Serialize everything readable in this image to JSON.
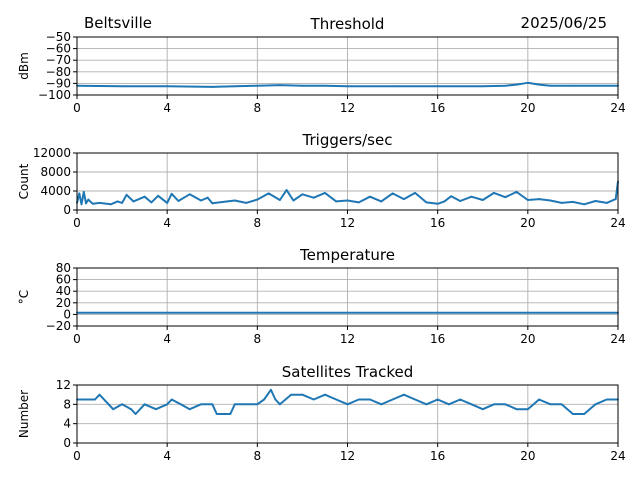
{
  "header": {
    "station": "Beltsville",
    "date": "2025/06/25"
  },
  "colors": {
    "series": "#1f77b4",
    "grid": "#b0b0b0",
    "axis": "#000000"
  },
  "chart_data": [
    {
      "type": "line",
      "title": "Threshold",
      "xlabel": "",
      "ylabel": "dBm",
      "xlim": [
        0,
        24
      ],
      "ylim": [
        -100,
        -50
      ],
      "xticks": [
        0,
        4,
        8,
        12,
        16,
        20,
        24
      ],
      "yticks": [
        -100,
        -90,
        -80,
        -70,
        -60,
        -50
      ],
      "xticklabels": [
        "0",
        "4",
        "8",
        "12",
        "16",
        "20",
        "24"
      ],
      "yticklabels": [
        "−100",
        "−90",
        "−80",
        "−70",
        "−60",
        "−50"
      ],
      "grid": true,
      "series": [
        {
          "x": [
            0,
            2,
            4,
            6,
            7,
            8,
            9,
            10,
            11,
            12,
            14,
            16,
            18,
            19,
            19.5,
            20,
            20.5,
            21,
            22,
            24
          ],
          "values": [
            -92,
            -92.5,
            -92.5,
            -93,
            -92.5,
            -92,
            -91.5,
            -92,
            -92,
            -92.5,
            -92.5,
            -92.5,
            -92.5,
            -92,
            -91,
            -89.5,
            -91,
            -92,
            -92,
            -92
          ]
        }
      ]
    },
    {
      "type": "line",
      "title": "Triggers/sec",
      "xlabel": "",
      "ylabel": "Count",
      "xlim": [
        0,
        24
      ],
      "ylim": [
        0,
        12000
      ],
      "xticks": [
        0,
        4,
        8,
        12,
        16,
        20,
        24
      ],
      "yticks": [
        0,
        4000,
        8000,
        12000
      ],
      "xticklabels": [
        "0",
        "4",
        "8",
        "12",
        "16",
        "20",
        "24"
      ],
      "yticklabels": [
        "0",
        "4000",
        "8000",
        "12000"
      ],
      "grid": true,
      "series": [
        {
          "x": [
            0,
            0.1,
            0.2,
            0.3,
            0.4,
            0.5,
            0.7,
            1,
            1.5,
            1.8,
            2,
            2.2,
            2.5,
            3,
            3.3,
            3.6,
            4,
            4.2,
            4.5,
            5,
            5.5,
            5.8,
            6,
            6.5,
            7,
            7.5,
            8,
            8.5,
            9,
            9.3,
            9.6,
            10,
            10.5,
            11,
            11.5,
            12,
            12.5,
            13,
            13.5,
            14,
            14.5,
            15,
            15.5,
            16,
            16.3,
            16.6,
            17,
            17.5,
            18,
            18.5,
            19,
            19.5,
            20,
            20.5,
            21,
            21.5,
            22,
            22.5,
            23,
            23.5,
            23.9,
            24
          ],
          "values": [
            1500,
            3500,
            1200,
            3800,
            1400,
            2200,
            1300,
            1500,
            1200,
            1800,
            1500,
            3200,
            1800,
            2800,
            1600,
            3000,
            1500,
            3400,
            1900,
            3300,
            2000,
            2600,
            1400,
            1700,
            2000,
            1500,
            2200,
            3500,
            2100,
            4200,
            2000,
            3300,
            2600,
            3600,
            1800,
            2000,
            1600,
            2800,
            1800,
            3500,
            2300,
            3600,
            1600,
            1300,
            1800,
            2900,
            1900,
            2800,
            2100,
            3600,
            2700,
            3800,
            2100,
            2300,
            2000,
            1500,
            1700,
            1200,
            1900,
            1500,
            2300,
            6000
          ]
        }
      ]
    },
    {
      "type": "line",
      "title": "Temperature",
      "xlabel": "",
      "ylabel": "°C",
      "xlim": [
        0,
        24
      ],
      "ylim": [
        -20,
        80
      ],
      "xticks": [
        0,
        4,
        8,
        12,
        16,
        20,
        24
      ],
      "yticks": [
        -20,
        0,
        20,
        40,
        60,
        80
      ],
      "xticklabels": [
        "0",
        "4",
        "8",
        "12",
        "16",
        "20",
        "24"
      ],
      "yticklabels": [
        "−20",
        "0",
        "20",
        "40",
        "60",
        "80"
      ],
      "grid": true,
      "series": [
        {
          "x": [
            0,
            24
          ],
          "values": [
            3,
            3
          ]
        }
      ]
    },
    {
      "type": "line",
      "title": "Satellites Tracked",
      "xlabel": "",
      "ylabel": "Number",
      "xlim": [
        0,
        24
      ],
      "ylim": [
        0,
        12
      ],
      "xticks": [
        0,
        4,
        8,
        12,
        16,
        20,
        24
      ],
      "yticks": [
        0,
        4,
        8,
        12
      ],
      "xticklabels": [
        "0",
        "4",
        "8",
        "12",
        "16",
        "20",
        "24"
      ],
      "yticklabels": [
        "0",
        "4",
        "8",
        "12"
      ],
      "grid": true,
      "series": [
        {
          "x": [
            0,
            0.8,
            1,
            1.4,
            1.6,
            2,
            2.4,
            2.6,
            3,
            3.5,
            4,
            4.2,
            4.6,
            5,
            5.5,
            6,
            6.2,
            6.8,
            7,
            8,
            8.3,
            8.6,
            8.8,
            9,
            9.5,
            10,
            10.5,
            11,
            11.5,
            12,
            12.5,
            13,
            13.5,
            14,
            14.5,
            15,
            15.5,
            16,
            16.5,
            17,
            17.5,
            18,
            18.5,
            19,
            19.5,
            20,
            20.5,
            21,
            21.5,
            22,
            22.5,
            23,
            23.5,
            24
          ],
          "values": [
            9,
            9,
            10,
            8,
            7,
            8,
            7,
            6,
            8,
            7,
            8,
            9,
            8,
            7,
            8,
            8,
            6,
            6,
            8,
            8,
            9,
            11,
            9,
            8,
            10,
            10,
            9,
            10,
            9,
            8,
            9,
            9,
            8,
            9,
            10,
            9,
            8,
            9,
            8,
            9,
            8,
            7,
            8,
            8,
            7,
            7,
            9,
            8,
            8,
            6,
            6,
            8,
            9,
            9
          ]
        }
      ]
    }
  ]
}
